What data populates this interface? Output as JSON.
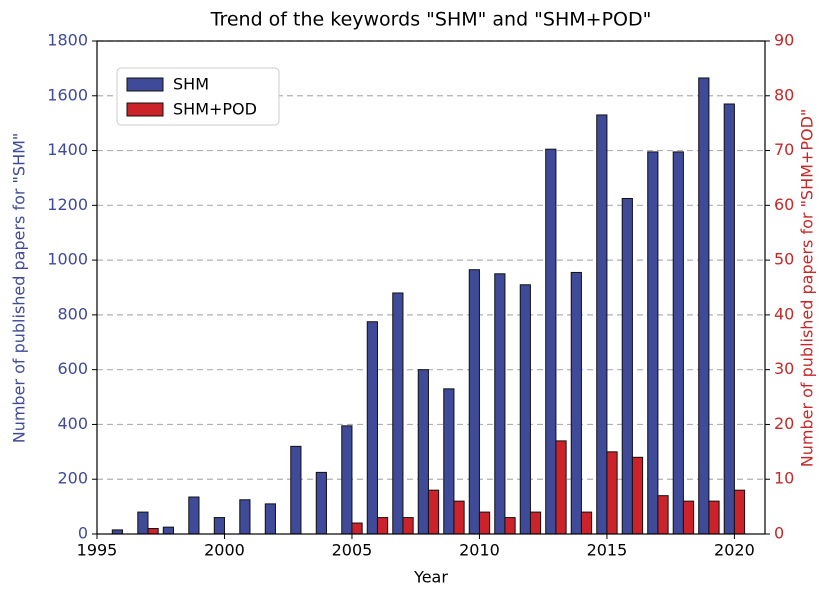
{
  "chart_data": {
    "type": "bar",
    "title": "Trend of the keywords \"SHM\" and \"SHM+POD\"",
    "xlabel": "Year",
    "ylabel": "Number of published papers for \"SHM\"",
    "y2label": "Number of published papers for \"SHM+POD\"",
    "x": [
      1996,
      1997,
      1998,
      1999,
      2000,
      2001,
      2002,
      2003,
      2004,
      2005,
      2006,
      2007,
      2008,
      2009,
      2010,
      2011,
      2012,
      2013,
      2014,
      2015,
      2016,
      2017,
      2018,
      2019,
      2020
    ],
    "series": [
      {
        "name": "SHM",
        "color": "#3f4b98",
        "values": [
          15,
          80,
          25,
          135,
          60,
          125,
          110,
          320,
          225,
          395,
          775,
          880,
          600,
          530,
          965,
          950,
          910,
          1405,
          955,
          1530,
          1225,
          1395,
          1395,
          1665,
          1570
        ]
      },
      {
        "name": "SHM+POD",
        "color": "#cc2229",
        "axis": "y2",
        "values": [
          0,
          1,
          0,
          0,
          0,
          0,
          0,
          0,
          0,
          2,
          3,
          3,
          8,
          6,
          4,
          3,
          4,
          17,
          4,
          15,
          14,
          7,
          6,
          6,
          8
        ]
      }
    ],
    "xlim": [
      1995,
      2021.2
    ],
    "xticks": [
      1995,
      2000,
      2005,
      2010,
      2015,
      2020
    ],
    "ylim": [
      0,
      1800
    ],
    "yticks": [
      0,
      200,
      400,
      600,
      800,
      1000,
      1200,
      1400,
      1600,
      1800
    ],
    "y2lim": [
      0,
      90
    ],
    "y2ticks": [
      0,
      10,
      20,
      30,
      40,
      50,
      60,
      70,
      80,
      90
    ],
    "grid": true,
    "legend": "upper left"
  }
}
